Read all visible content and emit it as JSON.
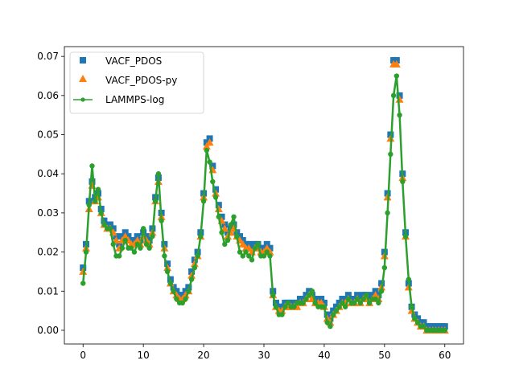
{
  "colors": {
    "vacf": "#1f77b4",
    "vacf_py": "#ff7f0e",
    "lammps": "#2ca02c",
    "axes": "#000000",
    "background": "#ffffff"
  },
  "icons": {
    "vacf": "square-marker-icon",
    "vacf_py": "triangle-marker-icon",
    "lammps": "line-dot-marker-icon"
  },
  "chart_data": {
    "type": "scatter",
    "title": "",
    "xlabel": "",
    "ylabel": "",
    "xlim": [
      -3.1,
      63.1
    ],
    "ylim": [
      -0.0035,
      0.0725
    ],
    "grid": false,
    "legend_position": "top-left",
    "x_ticks": [
      0,
      10,
      20,
      30,
      40,
      50,
      60
    ],
    "x_tick_labels": [
      "0",
      "10",
      "20",
      "30",
      "40",
      "50",
      "60"
    ],
    "y_ticks": [
      0.0,
      0.01,
      0.02,
      0.03,
      0.04,
      0.05,
      0.06,
      0.07
    ],
    "y_tick_labels": [
      "0.00",
      "0.01",
      "0.02",
      "0.03",
      "0.04",
      "0.05",
      "0.06",
      "0.07"
    ],
    "x": [
      0.0,
      0.5,
      1.0,
      1.5,
      2.0,
      2.5,
      3.0,
      3.5,
      4.0,
      4.5,
      5.0,
      5.5,
      6.0,
      6.5,
      7.0,
      7.5,
      8.0,
      8.5,
      9.0,
      9.5,
      10.0,
      10.5,
      11.0,
      11.5,
      12.0,
      12.5,
      13.0,
      13.5,
      14.0,
      14.5,
      15.0,
      15.5,
      16.0,
      16.5,
      17.0,
      17.5,
      18.0,
      18.5,
      19.0,
      19.5,
      20.0,
      20.5,
      21.0,
      21.5,
      22.0,
      22.5,
      23.0,
      23.5,
      24.0,
      24.5,
      25.0,
      25.5,
      26.0,
      26.5,
      27.0,
      27.5,
      28.0,
      28.5,
      29.0,
      29.5,
      30.0,
      30.5,
      31.0,
      31.5,
      32.0,
      32.5,
      33.0,
      33.5,
      34.0,
      34.5,
      35.0,
      35.5,
      36.0,
      36.5,
      37.0,
      37.5,
      38.0,
      38.5,
      39.0,
      39.5,
      40.0,
      40.5,
      41.0,
      41.5,
      42.0,
      42.5,
      43.0,
      43.5,
      44.0,
      44.5,
      45.0,
      45.5,
      46.0,
      46.5,
      47.0,
      47.5,
      48.0,
      48.5,
      49.0,
      49.5,
      50.0,
      50.5,
      51.0,
      51.5,
      52.0,
      52.5,
      53.0,
      53.5,
      54.0,
      54.5,
      55.0,
      55.5,
      56.0,
      56.5,
      57.0,
      57.5,
      58.0,
      58.5,
      59.0,
      59.5,
      60.0
    ],
    "series": [
      {
        "name": "VACF_PDOS",
        "marker": "square",
        "values": [
          0.016,
          0.022,
          0.033,
          0.038,
          0.034,
          0.035,
          0.031,
          0.028,
          0.027,
          0.027,
          0.026,
          0.024,
          0.022,
          0.024,
          0.025,
          0.024,
          0.023,
          0.023,
          0.024,
          0.023,
          0.025,
          0.024,
          0.023,
          0.026,
          0.034,
          0.039,
          0.03,
          0.022,
          0.017,
          0.013,
          0.011,
          0.01,
          0.009,
          0.009,
          0.01,
          0.011,
          0.015,
          0.018,
          0.02,
          0.025,
          0.035,
          0.048,
          0.049,
          0.042,
          0.036,
          0.032,
          0.029,
          0.027,
          0.025,
          0.026,
          0.027,
          0.025,
          0.024,
          0.023,
          0.022,
          0.022,
          0.021,
          0.022,
          0.022,
          0.021,
          0.021,
          0.022,
          0.021,
          0.01,
          0.007,
          0.006,
          0.006,
          0.007,
          0.007,
          0.007,
          0.007,
          0.007,
          0.008,
          0.008,
          0.009,
          0.01,
          0.009,
          0.008,
          0.008,
          0.008,
          0.007,
          0.004,
          0.003,
          0.005,
          0.006,
          0.007,
          0.008,
          0.008,
          0.009,
          0.008,
          0.008,
          0.009,
          0.008,
          0.009,
          0.009,
          0.008,
          0.009,
          0.01,
          0.009,
          0.012,
          0.02,
          0.035,
          0.05,
          0.069,
          0.069,
          0.06,
          0.04,
          0.025,
          0.012,
          0.006,
          0.004,
          0.003,
          0.002,
          0.002,
          0.001,
          0.001,
          0.001,
          0.001,
          0.001,
          0.001,
          0.001
        ]
      },
      {
        "name": "VACF_PDOS-py",
        "marker": "triangle",
        "values": [
          0.015,
          0.021,
          0.031,
          0.037,
          0.033,
          0.034,
          0.03,
          0.027,
          0.026,
          0.026,
          0.025,
          0.023,
          0.021,
          0.023,
          0.024,
          0.023,
          0.022,
          0.022,
          0.023,
          0.022,
          0.024,
          0.023,
          0.022,
          0.025,
          0.033,
          0.038,
          0.029,
          0.021,
          0.016,
          0.012,
          0.01,
          0.009,
          0.008,
          0.008,
          0.009,
          0.01,
          0.014,
          0.017,
          0.019,
          0.024,
          0.034,
          0.047,
          0.048,
          0.041,
          0.035,
          0.031,
          0.028,
          0.026,
          0.024,
          0.025,
          0.026,
          0.024,
          0.023,
          0.022,
          0.021,
          0.021,
          0.02,
          0.021,
          0.021,
          0.02,
          0.02,
          0.021,
          0.02,
          0.009,
          0.006,
          0.005,
          0.005,
          0.006,
          0.006,
          0.006,
          0.006,
          0.006,
          0.007,
          0.007,
          0.008,
          0.009,
          0.008,
          0.007,
          0.007,
          0.007,
          0.006,
          0.003,
          0.002,
          0.004,
          0.005,
          0.006,
          0.007,
          0.007,
          0.008,
          0.007,
          0.007,
          0.008,
          0.007,
          0.008,
          0.008,
          0.007,
          0.008,
          0.009,
          0.008,
          0.011,
          0.019,
          0.034,
          0.049,
          0.068,
          0.068,
          0.059,
          0.039,
          0.024,
          0.011,
          0.005,
          0.003,
          0.002,
          0.001,
          0.001,
          0.0,
          0.0,
          0.0,
          0.0,
          0.0,
          0.0,
          0.0
        ]
      },
      {
        "name": "LAMMPS-log",
        "marker": "line",
        "values": [
          0.012,
          0.02,
          0.032,
          0.042,
          0.033,
          0.036,
          0.03,
          0.027,
          0.026,
          0.026,
          0.022,
          0.019,
          0.019,
          0.021,
          0.023,
          0.021,
          0.021,
          0.02,
          0.022,
          0.021,
          0.026,
          0.022,
          0.021,
          0.024,
          0.033,
          0.04,
          0.028,
          0.019,
          0.015,
          0.012,
          0.01,
          0.008,
          0.007,
          0.007,
          0.008,
          0.01,
          0.013,
          0.016,
          0.019,
          0.024,
          0.033,
          0.046,
          0.043,
          0.038,
          0.034,
          0.029,
          0.025,
          0.022,
          0.023,
          0.027,
          0.029,
          0.024,
          0.02,
          0.019,
          0.02,
          0.019,
          0.018,
          0.021,
          0.022,
          0.019,
          0.019,
          0.02,
          0.019,
          0.009,
          0.006,
          0.004,
          0.004,
          0.006,
          0.007,
          0.006,
          0.006,
          0.007,
          0.007,
          0.007,
          0.008,
          0.009,
          0.01,
          0.007,
          0.006,
          0.006,
          0.006,
          0.002,
          0.001,
          0.004,
          0.005,
          0.006,
          0.007,
          0.006,
          0.008,
          0.007,
          0.007,
          0.008,
          0.007,
          0.008,
          0.009,
          0.007,
          0.008,
          0.008,
          0.007,
          0.01,
          0.016,
          0.03,
          0.045,
          0.06,
          0.065,
          0.055,
          0.038,
          0.024,
          0.013,
          0.006,
          0.003,
          0.002,
          0.001,
          0.001,
          0.0,
          0.0,
          0.0,
          0.0,
          0.0,
          0.0,
          0.0
        ]
      }
    ]
  }
}
